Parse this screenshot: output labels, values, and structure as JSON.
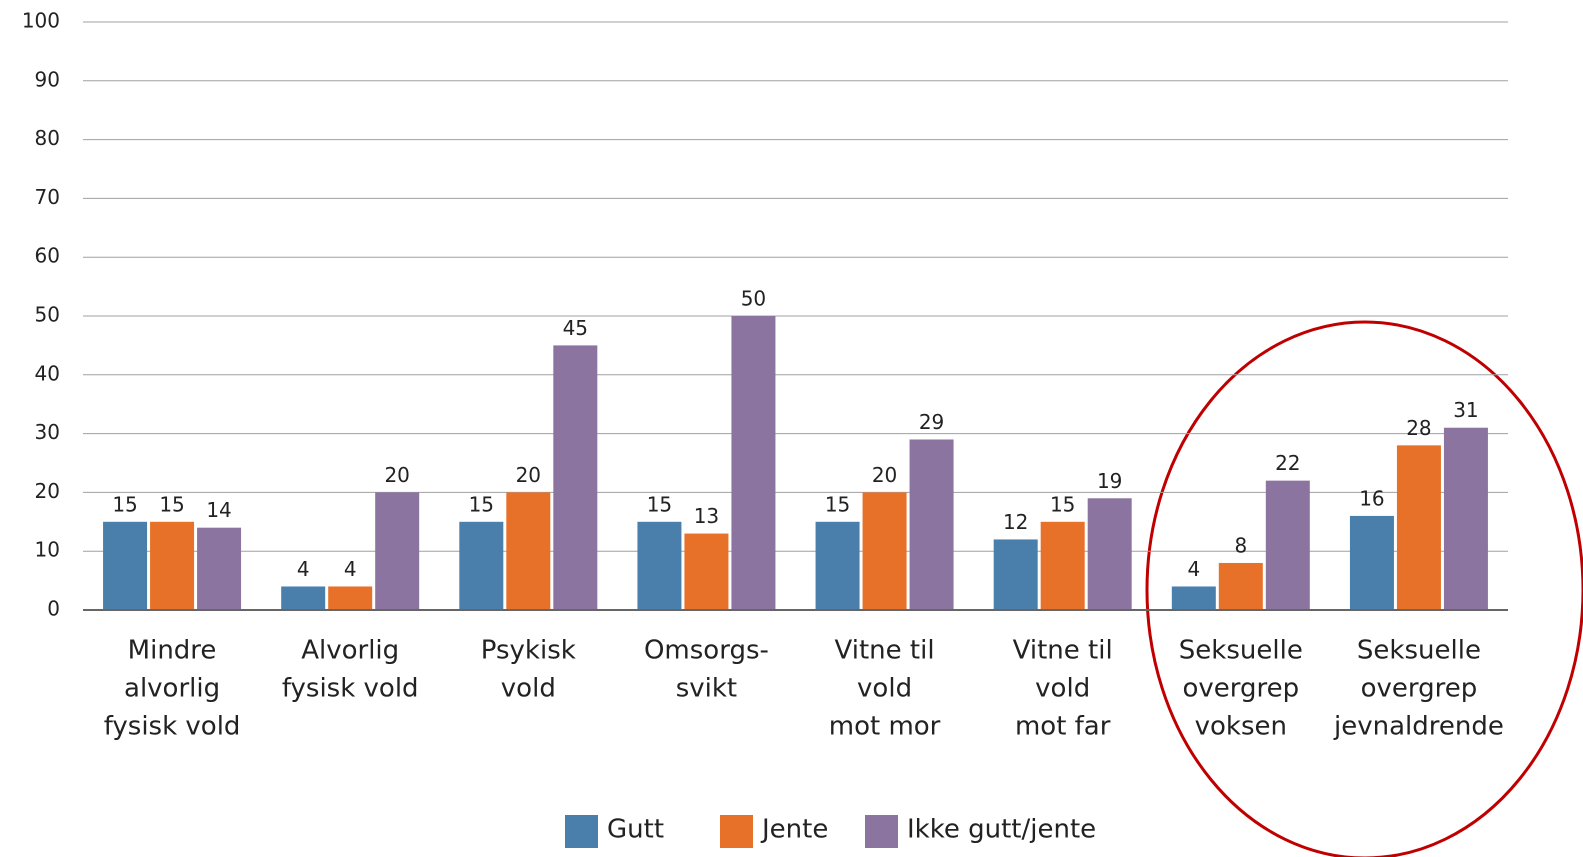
{
  "chart_data": {
    "type": "bar",
    "categories": [
      [
        "Mindre",
        "alvorlig",
        "fysisk vold"
      ],
      [
        "Alvorlig",
        "fysisk vold"
      ],
      [
        "Psykisk",
        "vold"
      ],
      [
        "Omsorgs-",
        "svikt"
      ],
      [
        "Vitne til",
        "vold",
        "mot mor"
      ],
      [
        "Vitne til",
        "vold",
        "mot far"
      ],
      [
        "Seksuelle",
        "overgrep",
        "voksen"
      ],
      [
        "Seksuelle",
        "overgrep",
        "jevnaldrende"
      ]
    ],
    "series": [
      {
        "name": "Gutt",
        "color": "#4a7fab",
        "values": [
          15,
          4,
          15,
          15,
          15,
          12,
          4,
          16
        ]
      },
      {
        "name": "Jente",
        "color": "#e8712a",
        "values": [
          15,
          4,
          20,
          13,
          20,
          15,
          8,
          28
        ]
      },
      {
        "name": "Ikke gutt/jente",
        "color": "#8c74a0",
        "values": [
          14,
          20,
          45,
          50,
          29,
          19,
          22,
          31
        ]
      }
    ],
    "ylim": [
      0,
      100
    ],
    "yticks": [
      0,
      10,
      20,
      30,
      40,
      50,
      60,
      70,
      80,
      90,
      100
    ],
    "grid": true,
    "legend": "bottom"
  }
}
